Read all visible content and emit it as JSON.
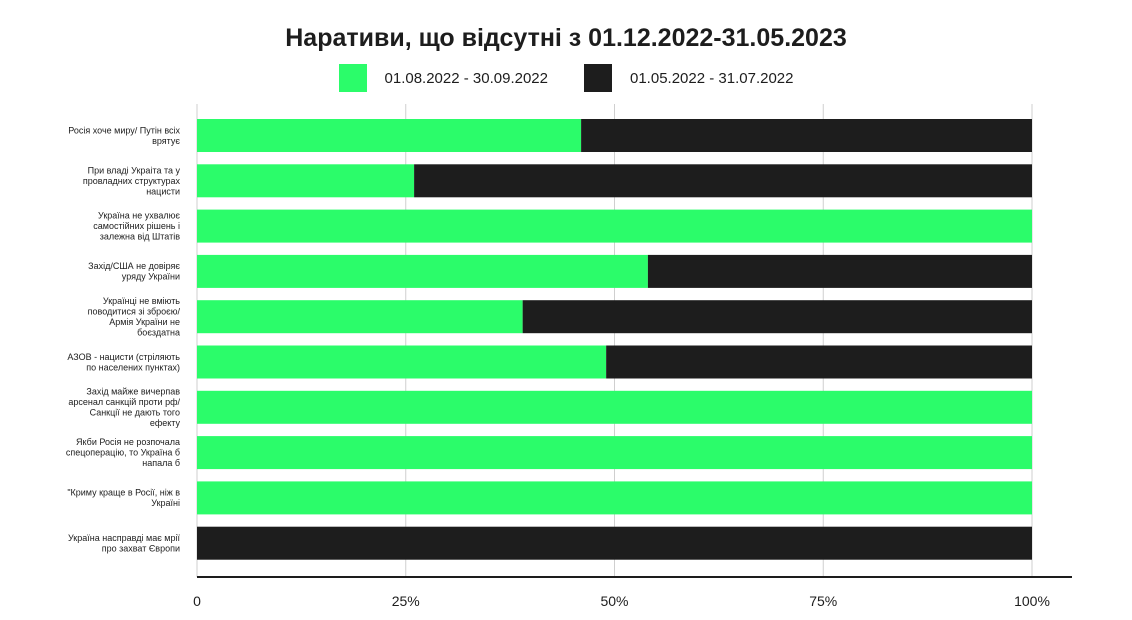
{
  "chart_data": {
    "type": "bar",
    "orientation": "horizontal",
    "stacked": true,
    "title": "Наративи, що відсутні з 01.12.2022-31.05.2023",
    "categories": [
      [
        "Росія хоче миру/ Путін всіх",
        "врятує"
      ],
      [
        "При владі Украіта та у",
        "провладних структурах",
        "нацисти"
      ],
      [
        "Україна не ухвалює",
        "самостійних рішень і",
        "залежна від Штатів"
      ],
      [
        "Захід/США не довіряє",
        "уряду України"
      ],
      [
        "Українці не вміють",
        "поводитися зі зброєю/",
        "Армія України не",
        "боєздатна"
      ],
      [
        "АЗОВ - нацисти (стріляють",
        "по населених пунктах)"
      ],
      [
        "Захід майже вичерпав",
        "арсенал санкцій проти рф/",
        "Санкції не дають того",
        "ефекту"
      ],
      [
        "Якби Росія не розпочала",
        "спецоперацію, то Україна б",
        "напала б"
      ],
      [
        "\"Криму краще в Росії, ніж в",
        "Україні"
      ],
      [
        "Україна насправді має мрії",
        "про захват Європи"
      ]
    ],
    "series": [
      {
        "name": "01.08.2022 - 30.09.2022",
        "color": "#2bfc6a",
        "values": [
          46,
          26,
          100,
          54,
          39,
          49,
          100,
          100,
          100,
          0
        ]
      },
      {
        "name": "01.05.2022 - 31.07.2022",
        "color": "#1d1d1d",
        "values": [
          54,
          74,
          0,
          46,
          61,
          51,
          0,
          0,
          0,
          100
        ]
      }
    ],
    "xticks": [
      "0",
      "25%",
      "50%",
      "75%",
      "100%"
    ],
    "xlim": [
      0,
      100
    ],
    "grid": true,
    "legend_position": "top-center"
  }
}
